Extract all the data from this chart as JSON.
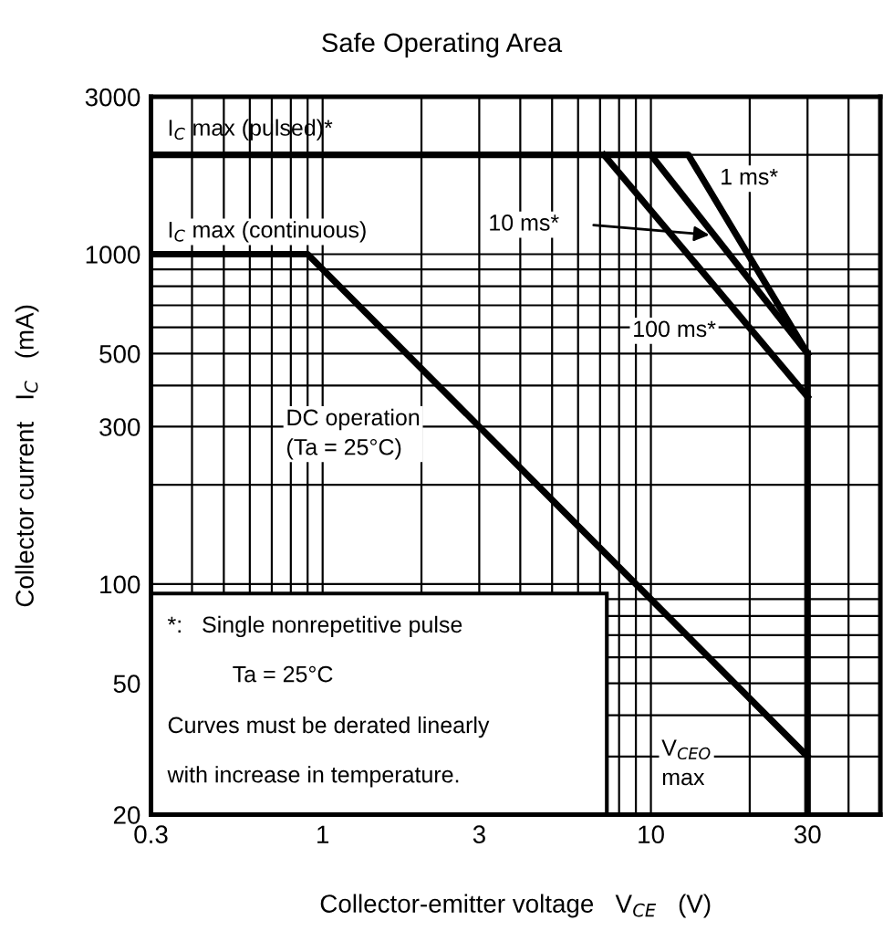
{
  "chart_data": {
    "type": "line",
    "title": "Safe Operating Area",
    "xlabel": "Collector-emitter voltage   V$_{CE}$   (V)",
    "ylabel": "Collector current   I$_{C}$   (mA)",
    "log": "xy",
    "xlim": [
      0.3,
      50
    ],
    "ylim": [
      20,
      3000
    ],
    "xticks": [
      0.3,
      1,
      3,
      10,
      30
    ],
    "yticks": [
      20,
      50,
      100,
      300,
      500,
      1000,
      3000
    ],
    "grid": true,
    "marker": "none",
    "line_style": "solid",
    "series": [
      {
        "color": "#000000",
        "x": [
          0.3,
          13,
          30
        ],
        "values": [
          2000,
          2000,
          500
        ]
      },
      {
        "color": "#000000",
        "x": [
          10,
          30
        ],
        "values": [
          2000,
          500
        ]
      },
      {
        "color": "#000000",
        "x": [
          7.2,
          30
        ],
        "values": [
          2000,
          370
        ]
      },
      {
        "color": "#000000",
        "x": [
          0.3,
          0.9,
          30
        ],
        "values": [
          1000,
          1000,
          30
        ]
      },
      {
        "color": "#000000",
        "x": [
          30,
          30
        ],
        "values": [
          500,
          20
        ]
      }
    ],
    "annotations": [
      "I$_{C}$ max (pulsed)*",
      "I$_{C}$ max (continuous)",
      "1 ms*",
      "10 ms*",
      "100 ms*",
      "DC operation\n(Ta = 25°C)",
      "V$_{CEO}$\nmax",
      "*:   Single nonrepetitive pulse",
      "      Ta = 25°C",
      "Curves must be derated linearly",
      "with increase in temperature."
    ]
  }
}
